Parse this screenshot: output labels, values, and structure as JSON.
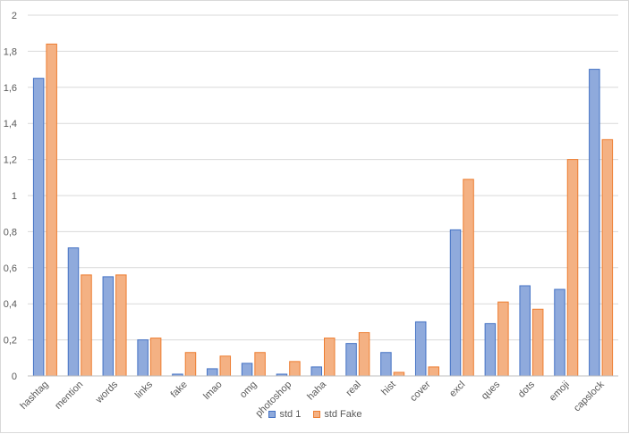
{
  "chart_data": {
    "type": "bar",
    "categories": [
      "hashtag",
      "mention",
      "words",
      "links",
      "fake",
      "lmao",
      "omg",
      "photoshop",
      "haha",
      "real",
      "hist",
      "cover",
      "excl",
      "ques",
      "dots",
      "emoji",
      "capslock"
    ],
    "series": [
      {
        "name": "std 1",
        "values": [
          1.65,
          0.71,
          0.55,
          0.2,
          0.01,
          0.04,
          0.07,
          0.01,
          0.05,
          0.18,
          0.13,
          0.3,
          0.81,
          0.29,
          0.5,
          0.48,
          1.7
        ],
        "color": "#8faadc",
        "stroke": "#4472c4"
      },
      {
        "name": "std Fake",
        "values": [
          1.84,
          0.56,
          0.56,
          0.21,
          0.13,
          0.11,
          0.13,
          0.08,
          0.21,
          0.24,
          0.02,
          0.05,
          1.09,
          0.41,
          0.37,
          1.2,
          1.31
        ],
        "color": "#f4b183",
        "stroke": "#ed7d31"
      }
    ],
    "y_ticks": [
      "0",
      "0,2",
      "0,4",
      "0,6",
      "0,8",
      "1",
      "1,2",
      "1,4",
      "1,6",
      "1,8",
      "2"
    ],
    "ylim": [
      0,
      2
    ],
    "grid": true,
    "legend_position": "bottom",
    "title": "",
    "xlabel": "",
    "ylabel": ""
  }
}
